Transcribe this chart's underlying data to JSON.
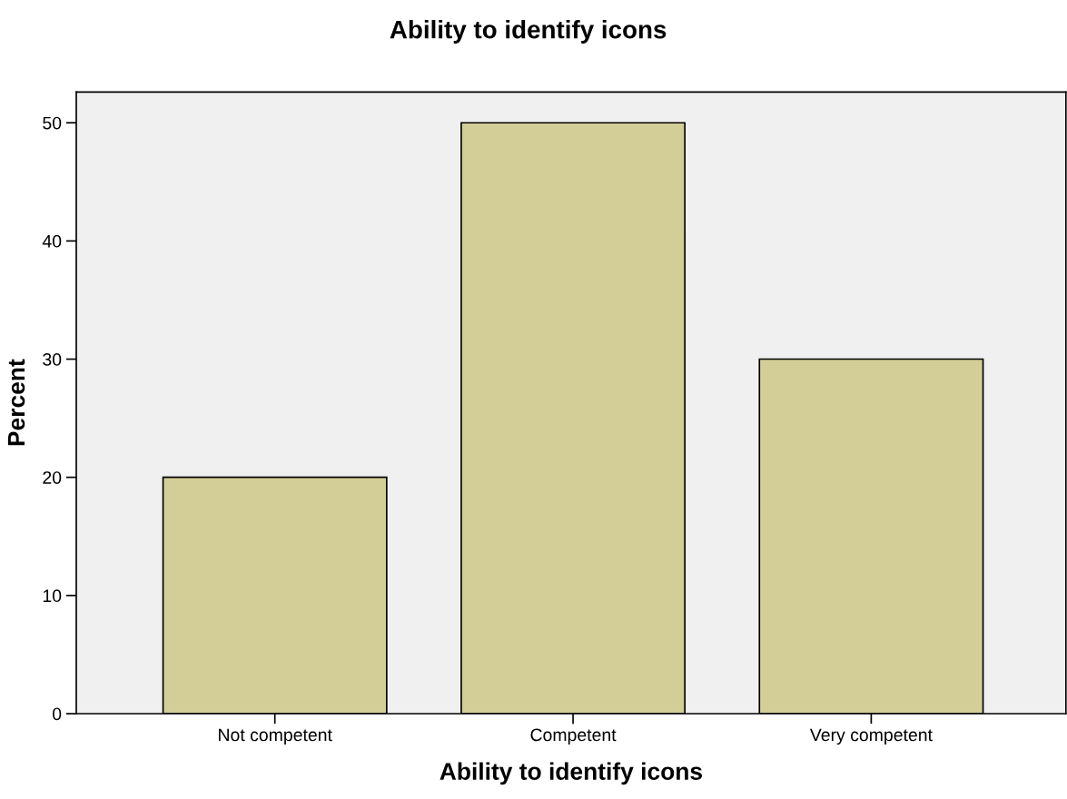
{
  "chart_data": {
    "type": "bar",
    "title": "Ability to identify icons",
    "xlabel": "Ability to identify icons",
    "ylabel": "Percent",
    "categories": [
      "Not competent",
      "Competent",
      "Very competent"
    ],
    "values": [
      20,
      50,
      30
    ],
    "color": "#d3ce97",
    "ylim": [
      0,
      52.6
    ],
    "yticks": [
      0,
      10,
      20,
      30,
      40,
      50
    ],
    "grid": false,
    "legend": false
  }
}
